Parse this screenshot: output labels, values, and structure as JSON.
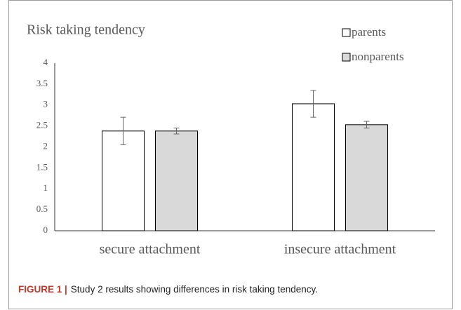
{
  "chart_data": {
    "type": "bar",
    "title": "Risk taking tendency",
    "categories": [
      "secure attachment",
      "insecure attachment"
    ],
    "series": [
      {
        "name": "parents",
        "color": "#ffffff",
        "values": [
          2.38,
          3.03
        ],
        "errors": [
          0.33,
          0.32
        ]
      },
      {
        "name": "nonparents",
        "color": "#d9d9d9",
        "values": [
          2.38,
          2.53
        ],
        "errors": [
          0.07,
          0.08
        ]
      }
    ],
    "ylim": [
      0,
      4
    ],
    "yticks": [
      0,
      0.5,
      1,
      1.5,
      2,
      2.5,
      3,
      3.5,
      4
    ],
    "grid": false,
    "legend": "top-right"
  },
  "caption": {
    "label": "FIGURE 1 |",
    "text": "Study 2 results showing differences in risk taking tendency."
  }
}
